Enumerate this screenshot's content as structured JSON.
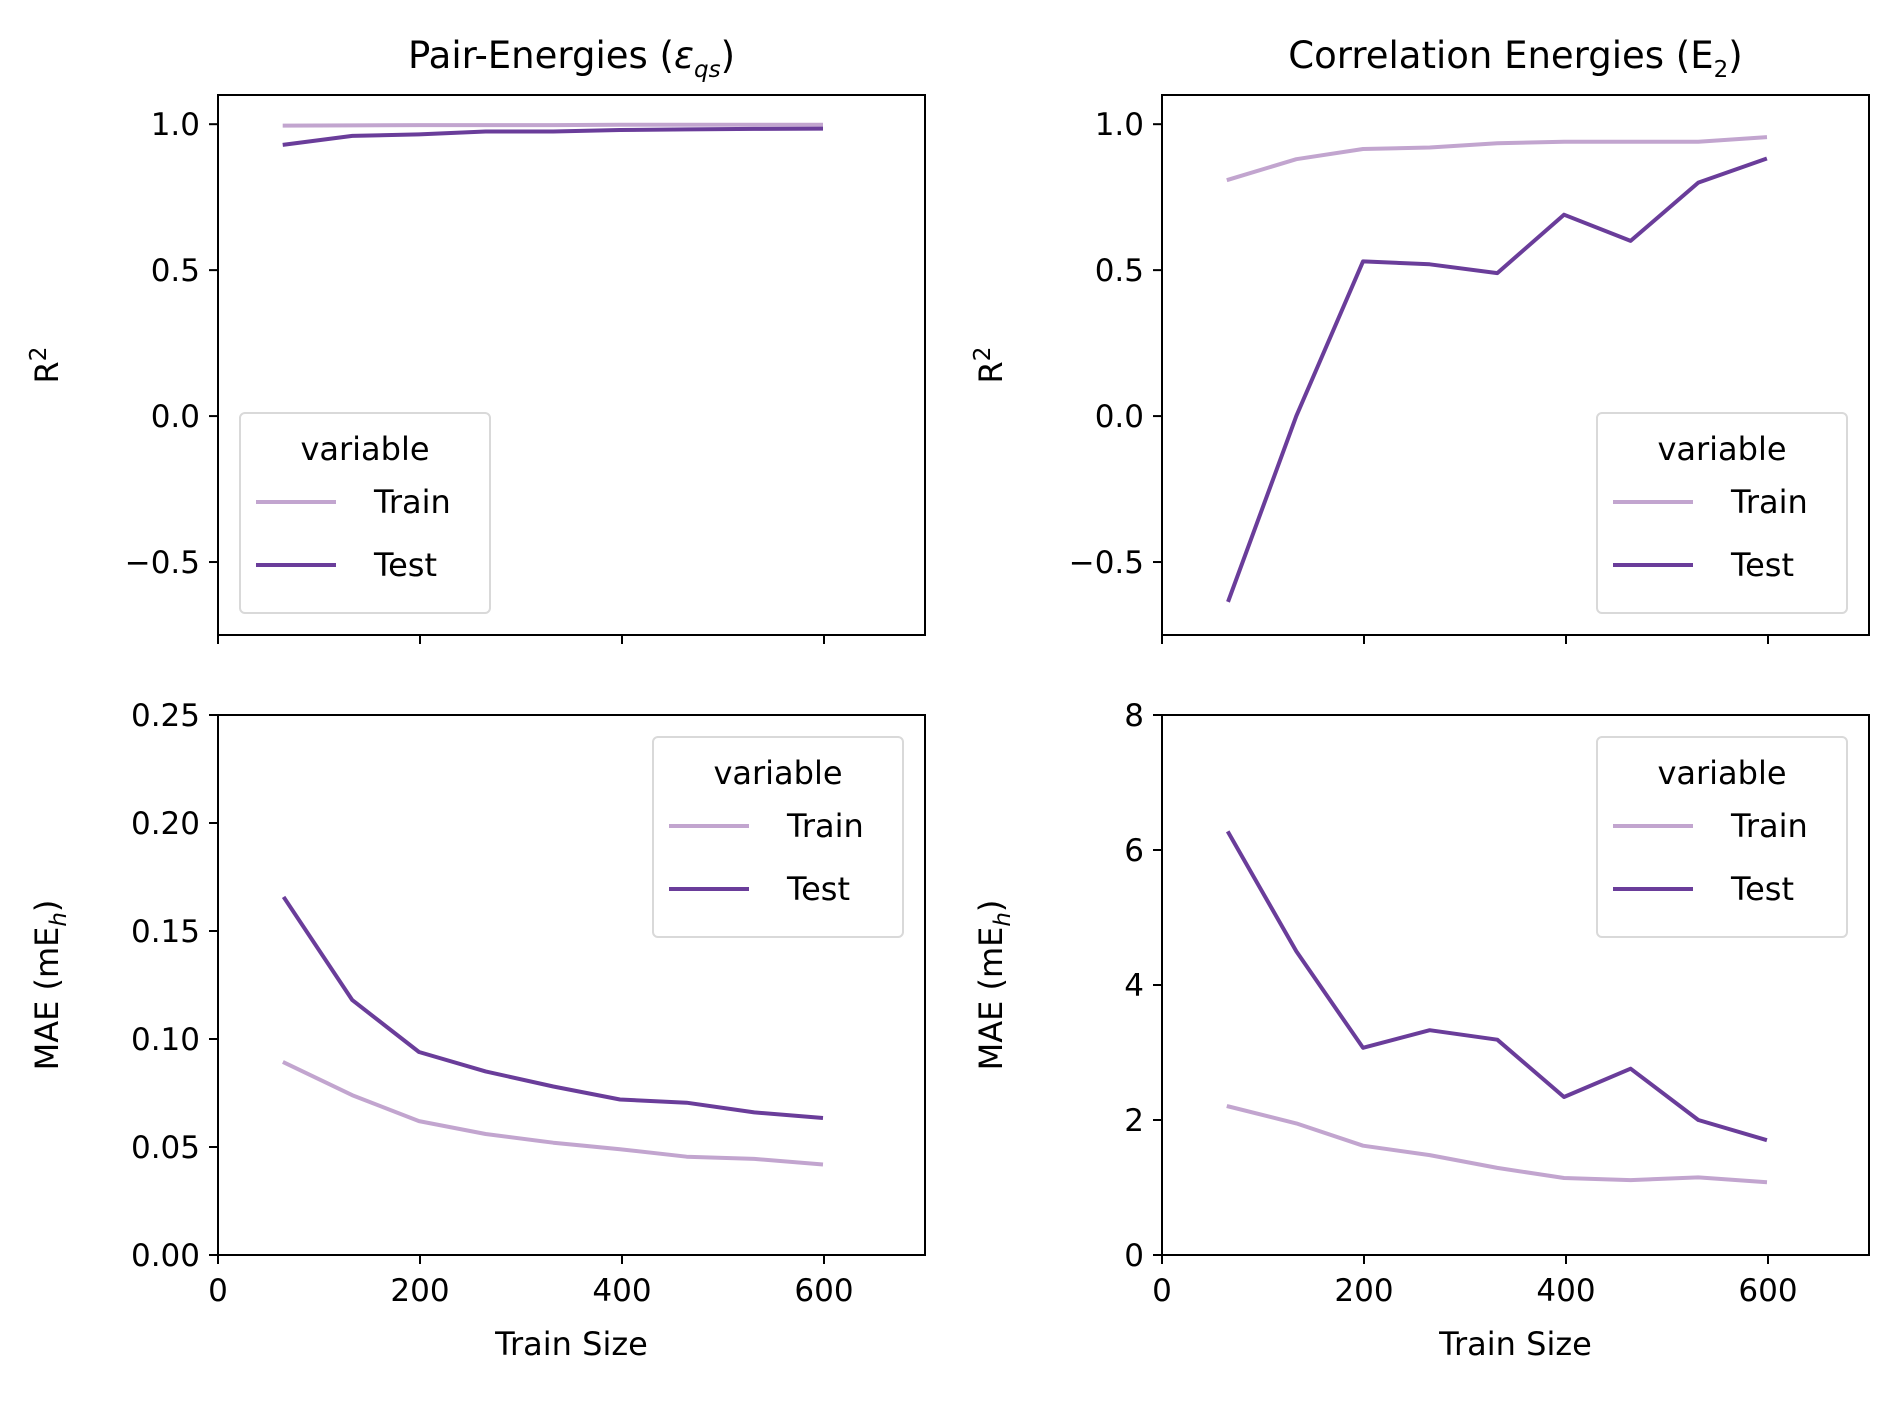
{
  "chart_data": [
    {
      "type": "line",
      "title": "Pair-Energies (εqs)",
      "title_parts": {
        "main": "Pair-Energies (",
        "symbol": "ε",
        "subscript": "qs",
        "close": ")"
      },
      "xlabel": "",
      "ylabel": "R2",
      "ylabel_parts": {
        "main": "R",
        "superscript": "2"
      },
      "xlim": [
        0,
        700
      ],
      "ylim": [
        -0.75,
        1.1
      ],
      "xticks": [
        0,
        200,
        400,
        600
      ],
      "xtick_labels_visible": false,
      "yticks": [
        -0.5,
        0.0,
        0.5,
        1.0
      ],
      "ytick_labels": [
        "−0.5",
        "0.0",
        "0.5",
        "1.0"
      ],
      "legend": {
        "title": "variable",
        "position": "lower-left"
      },
      "x": [
        66,
        133,
        199,
        265,
        332,
        398,
        464,
        531,
        597
      ],
      "series": [
        {
          "name": "Train",
          "color": "#c2a5cf",
          "values": [
            0.995,
            0.996,
            0.997,
            0.997,
            0.997,
            0.998,
            0.998,
            0.998,
            0.998
          ]
        },
        {
          "name": "Test",
          "color": "#6a3d9a",
          "values": [
            0.93,
            0.96,
            0.965,
            0.975,
            0.975,
            0.98,
            0.982,
            0.984,
            0.985
          ]
        }
      ]
    },
    {
      "type": "line",
      "title": "Correlation Energies (E2)",
      "title_parts": {
        "main": "Correlation Energies (E",
        "subscript": "2",
        "close": ")"
      },
      "xlabel": "",
      "ylabel": "R2",
      "ylabel_parts": {
        "main": "R",
        "superscript": "2"
      },
      "xlim": [
        0,
        700
      ],
      "ylim": [
        -0.75,
        1.1
      ],
      "xticks": [
        0,
        200,
        400,
        600
      ],
      "xtick_labels_visible": false,
      "yticks": [
        -0.5,
        0.0,
        0.5,
        1.0
      ],
      "ytick_labels": [
        "−0.5",
        "0.0",
        "0.5",
        "1.0"
      ],
      "legend": {
        "title": "variable",
        "position": "lower-right"
      },
      "x": [
        66,
        133,
        199,
        265,
        332,
        398,
        464,
        531,
        597
      ],
      "series": [
        {
          "name": "Train",
          "color": "#c2a5cf",
          "values": [
            0.81,
            0.88,
            0.915,
            0.92,
            0.935,
            0.94,
            0.94,
            0.94,
            0.955
          ]
        },
        {
          "name": "Test",
          "color": "#6a3d9a",
          "values": [
            -0.63,
            0.0,
            0.53,
            0.52,
            0.49,
            0.69,
            0.6,
            0.8,
            0.88
          ]
        }
      ]
    },
    {
      "type": "line",
      "title": "",
      "xlabel": "Train Size",
      "ylabel": "MAE (mEh)",
      "ylabel_parts": {
        "main": "MAE (mE",
        "subscript": "h",
        "close": ")"
      },
      "xlim": [
        0,
        700
      ],
      "ylim": [
        0,
        0.25
      ],
      "xticks": [
        0,
        200,
        400,
        600
      ],
      "xtick_labels": [
        "0",
        "200",
        "400",
        "600"
      ],
      "yticks": [
        0.0,
        0.05,
        0.1,
        0.15,
        0.2,
        0.25
      ],
      "ytick_labels": [
        "0.00",
        "0.05",
        "0.10",
        "0.15",
        "0.20",
        "0.25"
      ],
      "legend": {
        "title": "variable",
        "position": "upper-right"
      },
      "x": [
        66,
        133,
        199,
        265,
        332,
        398,
        464,
        531,
        597
      ],
      "series": [
        {
          "name": "Train",
          "color": "#c2a5cf",
          "values": [
            0.089,
            0.074,
            0.062,
            0.056,
            0.052,
            0.049,
            0.0455,
            0.0445,
            0.042
          ]
        },
        {
          "name": "Test",
          "color": "#6a3d9a",
          "values": [
            0.165,
            0.118,
            0.094,
            0.085,
            0.078,
            0.072,
            0.0705,
            0.066,
            0.0635
          ]
        }
      ]
    },
    {
      "type": "line",
      "title": "",
      "xlabel": "Train Size",
      "ylabel": "MAE (mEh)",
      "ylabel_parts": {
        "main": "MAE (mE",
        "subscript": "h",
        "close": ")"
      },
      "xlim": [
        0,
        700
      ],
      "ylim": [
        0,
        8
      ],
      "xticks": [
        0,
        200,
        400,
        600
      ],
      "xtick_labels": [
        "0",
        "200",
        "400",
        "600"
      ],
      "yticks": [
        0,
        2,
        4,
        6,
        8
      ],
      "ytick_labels": [
        "0",
        "2",
        "4",
        "6",
        "8"
      ],
      "legend": {
        "title": "variable",
        "position": "upper-right"
      },
      "x": [
        66,
        133,
        199,
        265,
        332,
        398,
        464,
        531,
        597
      ],
      "series": [
        {
          "name": "Train",
          "color": "#c2a5cf",
          "values": [
            2.2,
            1.95,
            1.62,
            1.48,
            1.29,
            1.14,
            1.11,
            1.15,
            1.08
          ]
        },
        {
          "name": "Test",
          "color": "#6a3d9a",
          "values": [
            6.25,
            4.5,
            3.07,
            3.33,
            3.19,
            2.34,
            2.76,
            2.0,
            1.71
          ]
        }
      ]
    }
  ]
}
